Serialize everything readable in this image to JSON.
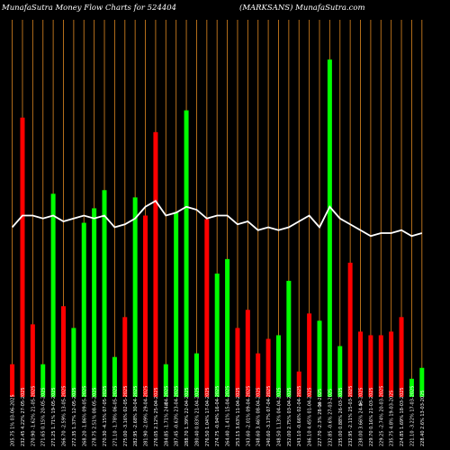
{
  "header": {
    "left_title": "MunafaSutra  Money Flow  Charts for 524404",
    "right_title": "(MARKSANS) MunafaSutra.com"
  },
  "colors": {
    "background": "#000000",
    "up": "#00ff00",
    "down": "#ff0000",
    "grid": "#c87a1e",
    "line": "#ffffff"
  },
  "chart_data": {
    "type": "bar",
    "title": "",
    "ylim": [
      0,
      100
    ],
    "xlim_count": 41,
    "categories": [
      "205.75 1% 03-06-2025",
      "232.45 4.22% 27-05-2025",
      "270.90 -1.62% 21-05-2025",
      "271.65 0.15% 20-05-2025",
      "271.25 1.71% 19-05-2025",
      "266.70 -2.59% 13-05-2025",
      "272.35 1.37% 12-05-2025",
      "268.20 -1.86% 09-05-2025",
      "278.75 2.51% 08-05-2025",
      "270.30 -4.15% 07-05-2025",
      "271.10 -1.78% 06-05-2025",
      "275.00 -3.16% 02-05-2025",
      "282.95 -2.68% 30-04-2025",
      "281.90 -2.09% 29-04-2025",
      "276.05 2.12% 25-04-2025",
      "284.85 -1.71% 24-04-2025",
      "287.45 -0.63% 23-04-2025",
      "288.70 1.39% 22-04-2025",
      "280.40 0.83% 21-04-2025",
      "276.50 1.04% 17-04-2025",
      "274.75 -0.94% 16-04-2025",
      "264.40 -1.41% 15-04-2025",
      "253.15 3.63% 11-04-2025",
      "243.60 -2.01% 09-04-2025",
      "248.60 3.46% 08-04-2025",
      "240.60 -3.17% 07-04-2025",
      "248.50 1.13% 04-04-2025",
      "252.00 2.75% 03-04-2025",
      "243.10 -0.66% 02-04-2025",
      "246.10 4.45% 01-04-2025",
      "227.70 -2.3% 28-03-2025",
      "232.85 -0.6% 27-03-2025",
      "235.00 0.88% 26-03-2025",
      "232.95 -2.11% 25-03-2025",
      "238.00 3.66% 24-03-2025",
      "229.70 0.16% 21-03-2025",
      "229.25 -2.74% 20-03-2025",
      "235.75 4.8% 19-03-2025",
      "224.85 1.69% 18-03-2025",
      "221.10 -3.22% 17-03-2025",
      "228.40 2.6% 13-03-2025"
    ],
    "flags": {
      "15": "H",
      "30": "A",
      "34": "A"
    },
    "series": [
      {
        "type": "bar",
        "values": [
          9,
          77,
          20,
          9,
          56,
          25,
          19,
          48,
          52,
          57,
          11,
          22,
          55,
          50,
          73,
          9,
          51,
          79,
          12,
          49,
          34,
          38,
          19,
          24,
          12,
          16,
          17,
          32,
          7,
          23,
          21,
          93,
          14,
          37,
          18,
          17,
          17,
          18,
          22,
          5,
          8
        ],
        "directions": [
          "d",
          "d",
          "d",
          "u",
          "u",
          "d",
          "u",
          "u",
          "u",
          "u",
          "u",
          "d",
          "u",
          "d",
          "d",
          "u",
          "u",
          "u",
          "u",
          "d",
          "u",
          "u",
          "d",
          "d",
          "d",
          "d",
          "u",
          "u",
          "d",
          "d",
          "u",
          "u",
          "u",
          "d",
          "d",
          "d",
          "d",
          "d",
          "d",
          "u",
          "u"
        ]
      },
      {
        "type": "line",
        "values": [
          58,
          62,
          62,
          61,
          62,
          60,
          61,
          62,
          61,
          62,
          58,
          59,
          61,
          65,
          67,
          62,
          63,
          65,
          64,
          61,
          62,
          62,
          59,
          60,
          57,
          58,
          57,
          58,
          60,
          62,
          58,
          65,
          61,
          59,
          57,
          55,
          56,
          56,
          57,
          55,
          56
        ]
      }
    ]
  }
}
